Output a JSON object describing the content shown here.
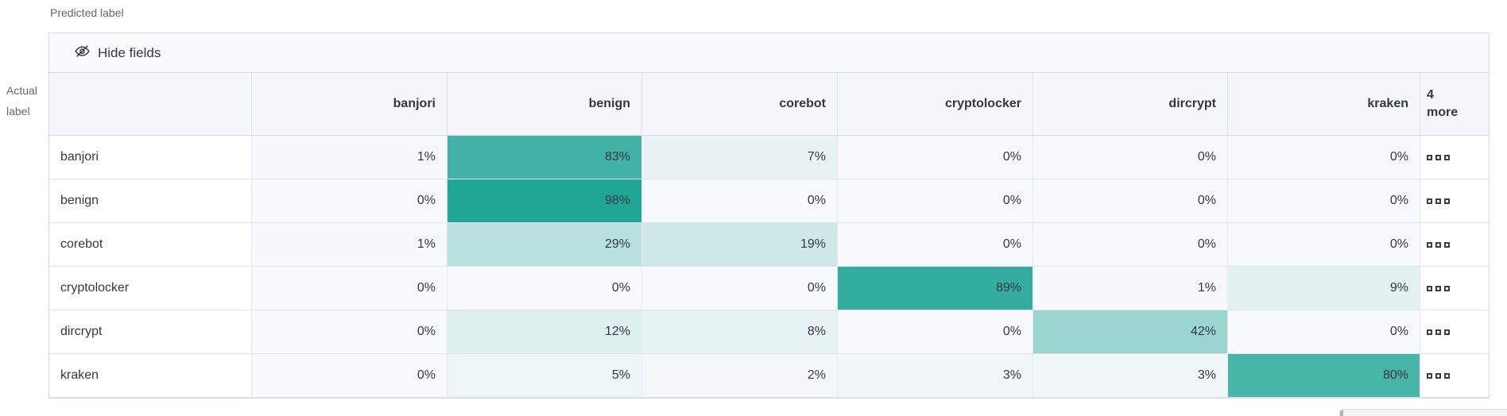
{
  "labels": {
    "predicted": "Predicted label",
    "actual_line1": "Actual",
    "actual_line2": "label"
  },
  "toolbar": {
    "hide_fields_label": "Hide fields",
    "icon": "eye-slash-icon"
  },
  "grid": {
    "more_header_line1": "4",
    "more_header_line2": "more",
    "more_cell_icon": "boxes-horizontal-icon"
  },
  "colors": {
    "heat_high": "#1BA493",
    "cell_zero_bg": "#F8F9FC",
    "header_bg": "#F5F7FA",
    "panel_border": "#D3DAE6",
    "text": "#343741",
    "muted_text": "#5E6673"
  },
  "chart_data": {
    "type": "heatmap",
    "xlabel": "Predicted label",
    "ylabel": "Actual label",
    "x_categories": [
      "banjori",
      "benign",
      "corebot",
      "cryptolocker",
      "dircrypt",
      "kraken"
    ],
    "x_hidden_more_label": "4 more",
    "y_categories": [
      "banjori",
      "benign",
      "corebot",
      "cryptolocker",
      "dircrypt",
      "kraken"
    ],
    "unit": "%",
    "values_percent": [
      [
        1,
        83,
        7,
        0,
        0,
        0
      ],
      [
        0,
        98,
        0,
        0,
        0,
        0
      ],
      [
        1,
        29,
        19,
        0,
        0,
        0
      ],
      [
        0,
        0,
        0,
        89,
        1,
        9
      ],
      [
        0,
        12,
        8,
        0,
        42,
        0
      ],
      [
        0,
        5,
        2,
        3,
        3,
        80
      ]
    ],
    "colorscale": {
      "low": "#F8F9FC",
      "high": "#1BA493"
    },
    "legend": "none",
    "grid_lines": "on"
  }
}
